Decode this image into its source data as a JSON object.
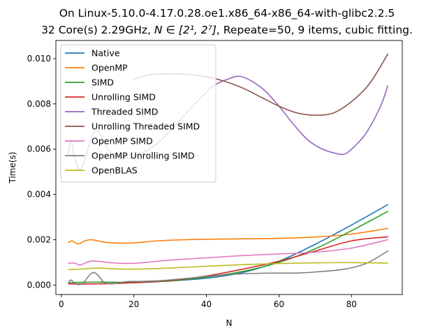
{
  "chart_data": {
    "type": "line",
    "title_line1": "On Linux-5.10.0-4.17.0.28.oe1.x86_64-x86_64-with-glibc2.2.5",
    "title_line2_prefix": "32 Core(s) 2.29GHz, ",
    "title_line2_math": "N ∈ [2¹, 2⁷]",
    "title_line2_suffix": ", Repeate=50, 9 items, cubic fitting.",
    "xlabel": "N",
    "ylabel": "Time(s)",
    "xlim": [
      -1.5,
      94
    ],
    "ylim": [
      -0.00042,
      0.0108
    ],
    "xticks": [
      0,
      20,
      40,
      60,
      80
    ],
    "xtick_labels": [
      "0",
      "20",
      "40",
      "60",
      "80"
    ],
    "yticks": [
      0,
      0.002,
      0.004,
      0.006,
      0.008,
      0.01
    ],
    "ytick_labels": [
      "0.000",
      "0.002",
      "0.004",
      "0.006",
      "0.008",
      "0.010"
    ],
    "grid": false,
    "legend_position": "top-left",
    "series": [
      {
        "name": "Native",
        "color": "#1f77b4",
        "points": [
          [
            2,
            5e-05
          ],
          [
            10,
            5e-05
          ],
          [
            20,
            0.0001
          ],
          [
            30,
            0.00018
          ],
          [
            40,
            0.0003
          ],
          [
            50,
            0.00055
          ],
          [
            60,
            0.00105
          ],
          [
            70,
            0.0018
          ],
          [
            80,
            0.00265
          ],
          [
            90,
            0.00355
          ]
        ]
      },
      {
        "name": "OpenMP",
        "color": "#ff7f0e",
        "points": [
          [
            2,
            0.00188
          ],
          [
            3,
            0.00195
          ],
          [
            4,
            0.00185
          ],
          [
            5,
            0.00182
          ],
          [
            6,
            0.00192
          ],
          [
            8,
            0.002
          ],
          [
            10,
            0.00195
          ],
          [
            12,
            0.00189
          ],
          [
            16,
            0.00185
          ],
          [
            20,
            0.00186
          ],
          [
            25,
            0.00193
          ],
          [
            30,
            0.00198
          ],
          [
            40,
            0.00202
          ],
          [
            50,
            0.00204
          ],
          [
            60,
            0.00206
          ],
          [
            70,
            0.00212
          ],
          [
            80,
            0.00225
          ],
          [
            90,
            0.0025
          ]
        ]
      },
      {
        "name": "SIMD",
        "color": "#2ca02c",
        "points": [
          [
            2,
            0.0001
          ],
          [
            5,
            0.00012
          ],
          [
            10,
            0.00013
          ],
          [
            20,
            0.00012
          ],
          [
            30,
            0.00018
          ],
          [
            40,
            0.00035
          ],
          [
            50,
            0.0006
          ],
          [
            60,
            0.001
          ],
          [
            70,
            0.0016
          ],
          [
            80,
            0.0024
          ],
          [
            90,
            0.00325
          ]
        ]
      },
      {
        "name": "Unrolling SIMD",
        "color": "#d62728",
        "points": [
          [
            2,
            5e-05
          ],
          [
            10,
            5e-05
          ],
          [
            20,
            0.0001
          ],
          [
            30,
            0.0002
          ],
          [
            40,
            0.0004
          ],
          [
            50,
            0.0007
          ],
          [
            60,
            0.00105
          ],
          [
            70,
            0.0015
          ],
          [
            80,
            0.00195
          ],
          [
            90,
            0.00213
          ]
        ]
      },
      {
        "name": "Threaded SIMD",
        "color": "#9467bd",
        "points": [
          [
            2,
            0.0058
          ],
          [
            2.5,
            0.0064
          ],
          [
            3,
            0.0062
          ],
          [
            3.5,
            0.0057
          ],
          [
            4,
            0.0055
          ],
          [
            4.5,
            0.0052
          ],
          [
            5,
            0.0051
          ],
          [
            6,
            0.0053
          ],
          [
            7,
            0.0058
          ],
          [
            8,
            0.0064
          ],
          [
            9,
            0.0067
          ],
          [
            10,
            0.0068
          ],
          [
            11,
            0.0066
          ],
          [
            12,
            0.0062
          ],
          [
            14,
            0.0058
          ],
          [
            18,
            0.0056
          ],
          [
            22,
            0.0058
          ],
          [
            26,
            0.0062
          ],
          [
            30,
            0.0068
          ],
          [
            34,
            0.0075
          ],
          [
            38,
            0.0082
          ],
          [
            42,
            0.0088
          ],
          [
            46,
            0.0091
          ],
          [
            49,
            0.00922
          ],
          [
            52,
            0.00905
          ],
          [
            56,
            0.0086
          ],
          [
            60,
            0.0079
          ],
          [
            64,
            0.0071
          ],
          [
            68,
            0.0064
          ],
          [
            72,
            0.006
          ],
          [
            76,
            0.0058
          ],
          [
            78,
            0.00578
          ],
          [
            80,
            0.006
          ],
          [
            84,
            0.0067
          ],
          [
            88,
            0.0079
          ],
          [
            90,
            0.0088
          ]
        ]
      },
      {
        "name": "Unrolling Threaded SIMD",
        "color": "#8c564b",
        "points": [
          [
            20,
            0.0091
          ],
          [
            25,
            0.0093
          ],
          [
            30,
            0.00932
          ],
          [
            35,
            0.0093
          ],
          [
            40,
            0.0092
          ],
          [
            45,
            0.009
          ],
          [
            50,
            0.0087
          ],
          [
            55,
            0.0083
          ],
          [
            60,
            0.0079
          ],
          [
            65,
            0.0076
          ],
          [
            70,
            0.0075
          ],
          [
            75,
            0.0076
          ],
          [
            80,
            0.0081
          ],
          [
            85,
            0.0089
          ],
          [
            90,
            0.0102
          ]
        ]
      },
      {
        "name": "OpenMP SIMD",
        "color": "#e377c2",
        "points": [
          [
            2,
            0.00095
          ],
          [
            3,
            0.00098
          ],
          [
            4,
            0.00095
          ],
          [
            5,
            0.00088
          ],
          [
            6,
            0.00093
          ],
          [
            8,
            0.00105
          ],
          [
            10,
            0.00105
          ],
          [
            14,
            0.00098
          ],
          [
            18,
            0.00095
          ],
          [
            22,
            0.00098
          ],
          [
            30,
            0.0011
          ],
          [
            40,
            0.0012
          ],
          [
            50,
            0.0013
          ],
          [
            60,
            0.00137
          ],
          [
            70,
            0.00145
          ],
          [
            80,
            0.00163
          ],
          [
            90,
            0.002
          ]
        ]
      },
      {
        "name": "OpenMP Unrolling SIMD",
        "color": "#7f7f7f",
        "points": [
          [
            2,
            0.0001
          ],
          [
            2.5,
            0.00022
          ],
          [
            3,
            0.00018
          ],
          [
            4,
            5e-05
          ],
          [
            5,
            2e-05
          ],
          [
            6,
            8e-05
          ],
          [
            7,
            0.00028
          ],
          [
            8,
            0.00048
          ],
          [
            9,
            0.00055
          ],
          [
            10,
            0.00045
          ],
          [
            11,
            0.00025
          ],
          [
            12,
            0.0001
          ],
          [
            14,
            5e-05
          ],
          [
            18,
            0.00015
          ],
          [
            22,
            0.00016
          ],
          [
            28,
            0.0002
          ],
          [
            35,
            0.0003
          ],
          [
            45,
            0.00045
          ],
          [
            55,
            0.00052
          ],
          [
            65,
            0.00053
          ],
          [
            72,
            0.0006
          ],
          [
            78,
            0.0007
          ],
          [
            84,
            0.00095
          ],
          [
            90,
            0.0015
          ]
        ]
      },
      {
        "name": "OpenBLAS",
        "color": "#bcbd22",
        "points": [
          [
            2,
            0.00068
          ],
          [
            5,
            0.0007
          ],
          [
            10,
            0.00075
          ],
          [
            15,
            0.00071
          ],
          [
            20,
            0.0007
          ],
          [
            30,
            0.00075
          ],
          [
            40,
            0.00083
          ],
          [
            50,
            0.0009
          ],
          [
            60,
            0.00095
          ],
          [
            70,
            0.00098
          ],
          [
            80,
            0.00099
          ],
          [
            90,
            0.00097
          ]
        ]
      }
    ]
  }
}
